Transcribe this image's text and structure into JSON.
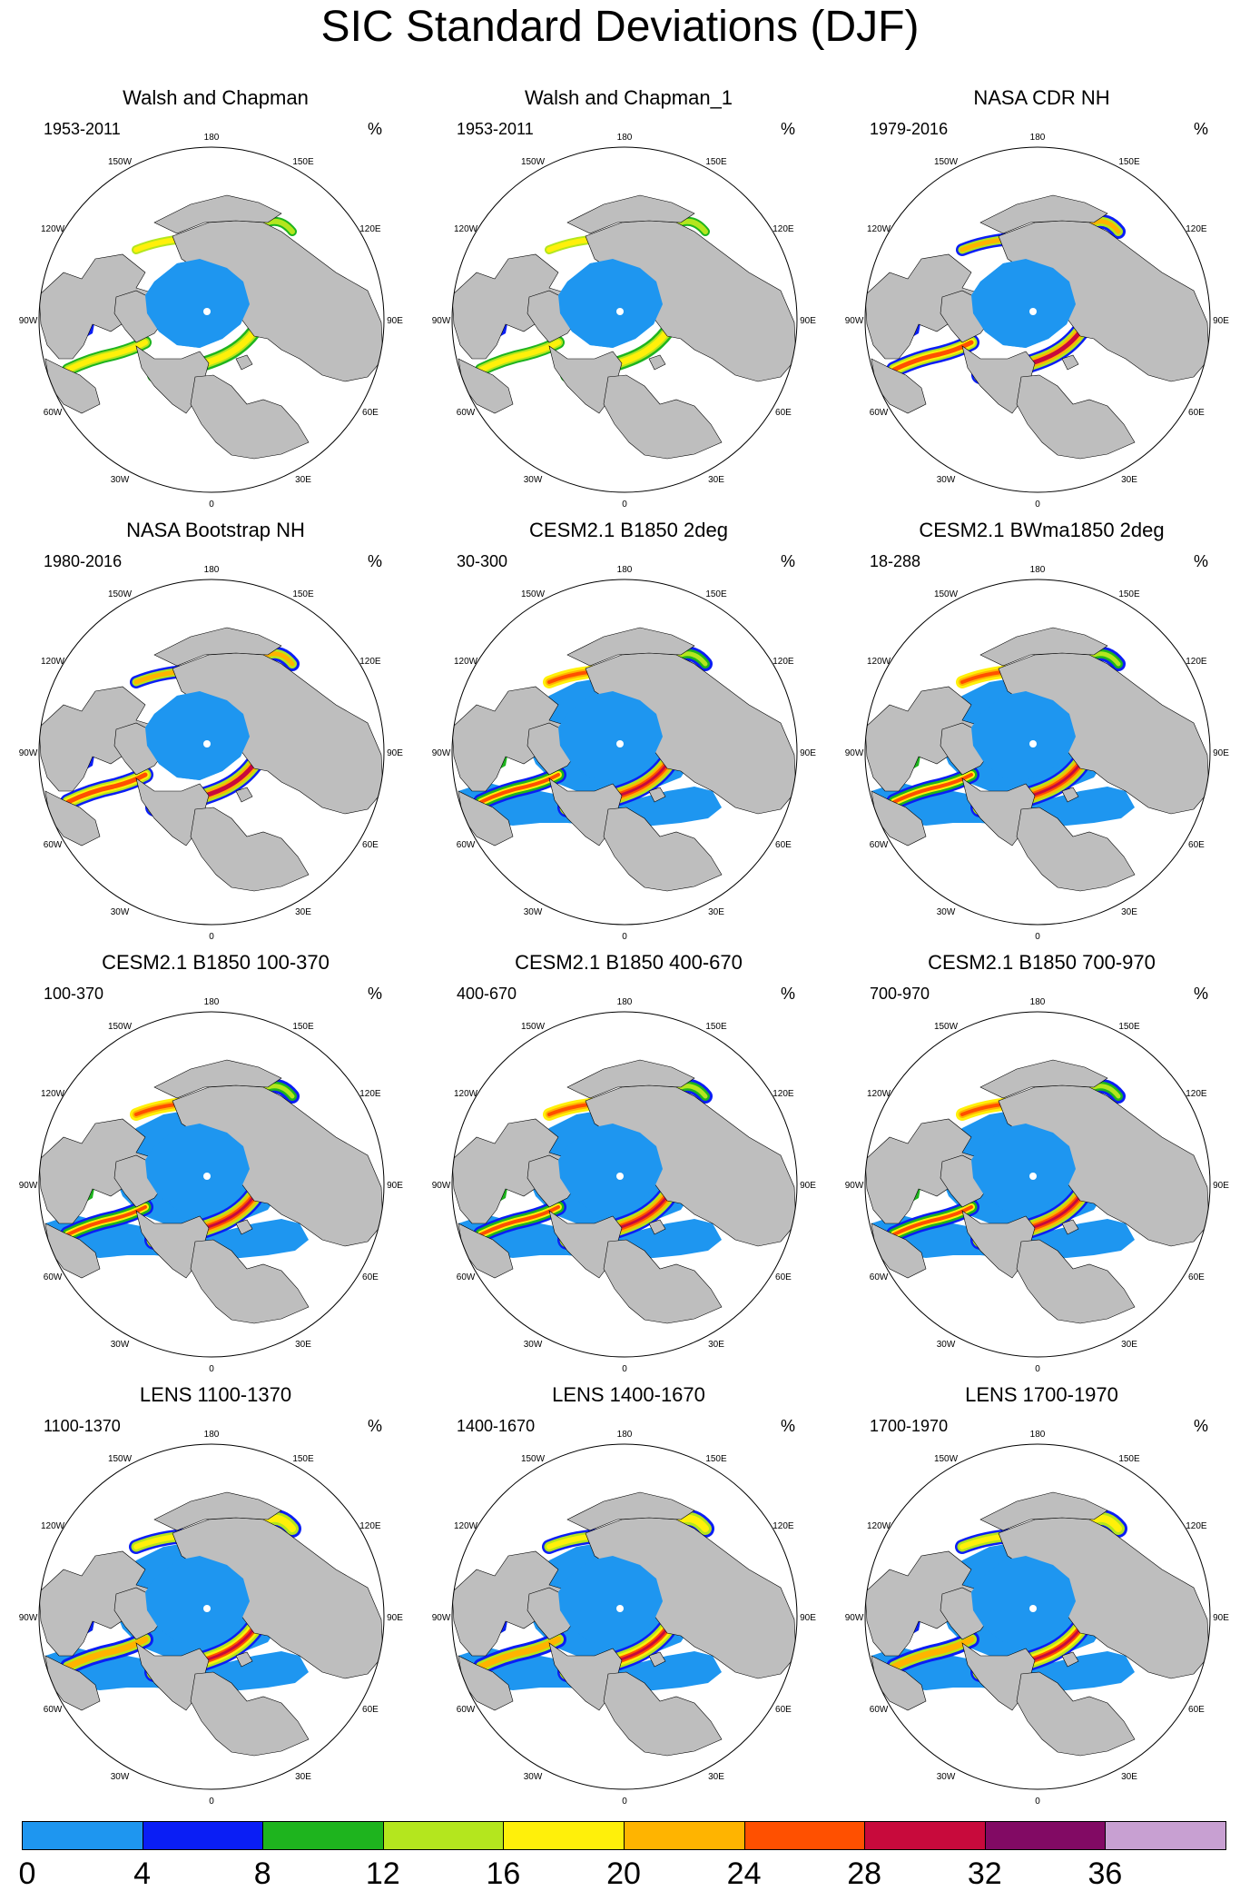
{
  "title": "SIC Standard Deviations (DJF)",
  "units": "%",
  "panels": [
    {
      "title": "Walsh and Chapman",
      "period": "1953-2011",
      "style": "obs1"
    },
    {
      "title": "Walsh and Chapman_1",
      "period": "1953-2011",
      "style": "obs1"
    },
    {
      "title": "NASA CDR NH",
      "period": "1979-2016",
      "style": "obs2"
    },
    {
      "title": "NASA Bootstrap NH",
      "period": "1980-2016",
      "style": "obs2"
    },
    {
      "title": "CESM2.1 B1850 2deg",
      "period": "30-300",
      "style": "model"
    },
    {
      "title": "CESM2.1 BWma1850 2deg",
      "period": "18-288",
      "style": "model"
    },
    {
      "title": "CESM2.1 B1850 100-370",
      "period": "100-370",
      "style": "model"
    },
    {
      "title": "CESM2.1 B1850 400-670",
      "period": "400-670",
      "style": "model"
    },
    {
      "title": "CESM2.1 B1850 700-970",
      "period": "700-970",
      "style": "model"
    },
    {
      "title": "LENS 1100-1370",
      "period": "1100-1370",
      "style": "lens"
    },
    {
      "title": "LENS 1400-1670",
      "period": "1400-1670",
      "style": "lens"
    },
    {
      "title": "LENS 1700-1970",
      "period": "1700-1970",
      "style": "lens"
    }
  ],
  "longitude_labels": [
    "180",
    "150E",
    "120E",
    "90E",
    "60E",
    "30E",
    "0",
    "30W",
    "60W",
    "90W",
    "120W",
    "150W"
  ],
  "colorbar": {
    "ticks": [
      "0",
      "4",
      "8",
      "12",
      "16",
      "20",
      "24",
      "28",
      "32",
      "36"
    ],
    "colors": [
      "#1e96f0",
      "#0a1ef5",
      "#1eb41e",
      "#b4e61e",
      "#fff00a",
      "#ffb400",
      "#ff5000",
      "#c80a3c",
      "#820a64",
      "#c8a0d2"
    ]
  },
  "colors": {
    "land": "#bebebe",
    "ocean": "#ffffff"
  }
}
